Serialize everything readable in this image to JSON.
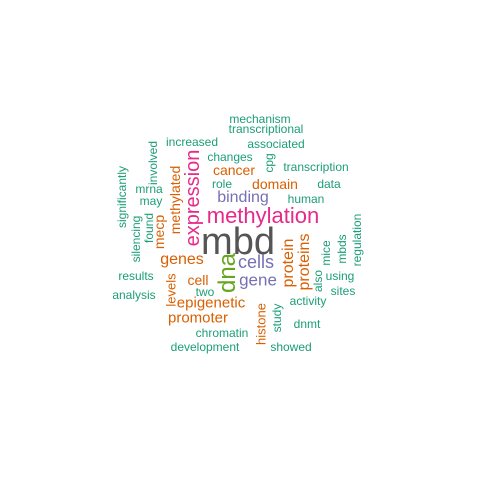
{
  "palette": {
    "teal": "#1b9e77",
    "orange": "#d95f02",
    "purple": "#7570b3",
    "magenta": "#e7298a",
    "green": "#66a61e",
    "gray": "#555555"
  },
  "words": [
    {
      "text": "mbd",
      "color": "gray"
    },
    {
      "text": "methylation",
      "color": "magenta"
    },
    {
      "text": "expression",
      "color": "magenta"
    },
    {
      "text": "dna",
      "color": "green"
    },
    {
      "text": "cells",
      "color": "purple"
    },
    {
      "text": "gene",
      "color": "purple"
    },
    {
      "text": "binding",
      "color": "purple"
    },
    {
      "text": "genes",
      "color": "orange"
    },
    {
      "text": "protein",
      "color": "orange"
    },
    {
      "text": "proteins",
      "color": "orange"
    },
    {
      "text": "epigenetic",
      "color": "orange"
    },
    {
      "text": "promoter",
      "color": "orange"
    },
    {
      "text": "cancer",
      "color": "orange"
    },
    {
      "text": "domain",
      "color": "orange"
    },
    {
      "text": "methylated",
      "color": "orange"
    },
    {
      "text": "mecp",
      "color": "orange"
    },
    {
      "text": "cell",
      "color": "orange"
    },
    {
      "text": "levels",
      "color": "orange"
    },
    {
      "text": "histone",
      "color": "orange"
    },
    {
      "text": "mechanism",
      "color": "teal"
    },
    {
      "text": "transcriptional",
      "color": "teal"
    },
    {
      "text": "increased",
      "color": "teal"
    },
    {
      "text": "associated",
      "color": "teal"
    },
    {
      "text": "changes",
      "color": "teal"
    },
    {
      "text": "cpg",
      "color": "teal"
    },
    {
      "text": "transcription",
      "color": "teal"
    },
    {
      "text": "role",
      "color": "teal"
    },
    {
      "text": "data",
      "color": "teal"
    },
    {
      "text": "involved",
      "color": "teal"
    },
    {
      "text": "significantly",
      "color": "teal"
    },
    {
      "text": "mrna",
      "color": "teal"
    },
    {
      "text": "may",
      "color": "teal"
    },
    {
      "text": "human",
      "color": "teal"
    },
    {
      "text": "found",
      "color": "teal"
    },
    {
      "text": "silencing",
      "color": "teal"
    },
    {
      "text": "regulation",
      "color": "teal"
    },
    {
      "text": "mbds",
      "color": "teal"
    },
    {
      "text": "mice",
      "color": "teal"
    },
    {
      "text": "also",
      "color": "teal"
    },
    {
      "text": "using",
      "color": "teal"
    },
    {
      "text": "results",
      "color": "teal"
    },
    {
      "text": "sites",
      "color": "teal"
    },
    {
      "text": "analysis",
      "color": "teal"
    },
    {
      "text": "two",
      "color": "teal"
    },
    {
      "text": "activity",
      "color": "teal"
    },
    {
      "text": "study",
      "color": "teal"
    },
    {
      "text": "dnmt",
      "color": "teal"
    },
    {
      "text": "chromatin",
      "color": "teal"
    },
    {
      "text": "development",
      "color": "teal"
    },
    {
      "text": "showed",
      "color": "teal"
    }
  ]
}
